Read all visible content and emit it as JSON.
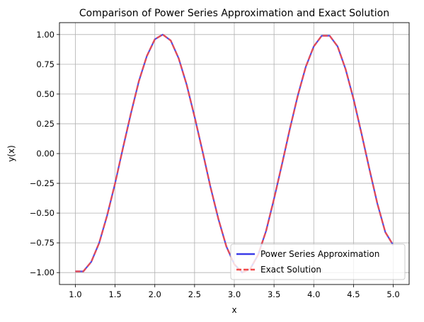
{
  "chart_data": {
    "type": "line",
    "title": "Comparison of Power Series Approximation and Exact Solution",
    "xlabel": "x",
    "ylabel": "y(x)",
    "xlim": [
      0.8,
      5.2
    ],
    "ylim": [
      -1.1,
      1.1
    ],
    "x_ticks": [
      1.0,
      1.5,
      2.0,
      2.5,
      3.0,
      3.5,
      4.0,
      4.5,
      5.0
    ],
    "y_ticks": [
      -1.0,
      -0.75,
      -0.5,
      -0.25,
      0.0,
      0.25,
      0.5,
      0.75,
      1.0
    ],
    "x_tick_labels": [
      "1.0",
      "1.5",
      "2.0",
      "2.5",
      "3.0",
      "3.5",
      "4.0",
      "4.5",
      "5.0"
    ],
    "y_tick_labels": [
      "−1.00",
      "−0.75",
      "−0.50",
      "−0.25",
      "0.00",
      "0.25",
      "0.50",
      "0.75",
      "1.00"
    ],
    "grid": true,
    "legend_position": "lower-right",
    "series": [
      {
        "name": "Power Series Approximation",
        "color": "#3b3be8",
        "style": "solid",
        "x": [
          1.0,
          1.1,
          1.2,
          1.3,
          1.4,
          1.5,
          1.6,
          1.7,
          1.8,
          1.9,
          2.0,
          2.1,
          2.2,
          2.3,
          2.4,
          2.5,
          2.6,
          2.7,
          2.8,
          2.9,
          3.0,
          3.1,
          3.2,
          3.3,
          3.4,
          3.5,
          3.6,
          3.7,
          3.8,
          3.9,
          4.0,
          4.1,
          4.2,
          4.3,
          4.4,
          4.5,
          4.6,
          4.7,
          4.8,
          4.9,
          5.0
        ],
        "y": [
          -0.99,
          -0.99,
          -0.91,
          -0.75,
          -0.52,
          -0.25,
          0.05,
          0.34,
          0.61,
          0.82,
          0.96,
          1.0,
          0.95,
          0.8,
          0.58,
          0.31,
          0.02,
          -0.28,
          -0.55,
          -0.78,
          -0.93,
          -1.0,
          -0.97,
          -0.85,
          -0.65,
          -0.38,
          -0.09,
          0.21,
          0.49,
          0.73,
          0.9,
          0.99,
          0.99,
          0.9,
          0.71,
          0.46,
          0.17,
          -0.13,
          -0.42,
          -0.66,
          -0.77
        ]
      },
      {
        "name": "Exact Solution",
        "color": "#f04a4a",
        "style": "dashed",
        "x": [
          1.0,
          1.1,
          1.2,
          1.3,
          1.4,
          1.5,
          1.6,
          1.7,
          1.8,
          1.9,
          2.0,
          2.1,
          2.2,
          2.3,
          2.4,
          2.5,
          2.6,
          2.7,
          2.8,
          2.9,
          3.0,
          3.1,
          3.2,
          3.3,
          3.4,
          3.5,
          3.6,
          3.7,
          3.8,
          3.9,
          4.0,
          4.1,
          4.2,
          4.3,
          4.4,
          4.5,
          4.6,
          4.7,
          4.8,
          4.9,
          5.0
        ],
        "y": [
          -0.99,
          -0.99,
          -0.91,
          -0.75,
          -0.52,
          -0.25,
          0.05,
          0.34,
          0.61,
          0.82,
          0.96,
          1.0,
          0.95,
          0.8,
          0.58,
          0.31,
          0.02,
          -0.28,
          -0.55,
          -0.78,
          -0.93,
          -1.0,
          -0.97,
          -0.85,
          -0.65,
          -0.38,
          -0.09,
          0.21,
          0.49,
          0.73,
          0.9,
          0.99,
          0.99,
          0.9,
          0.71,
          0.46,
          0.17,
          -0.13,
          -0.42,
          -0.66,
          -0.77
        ]
      }
    ]
  }
}
